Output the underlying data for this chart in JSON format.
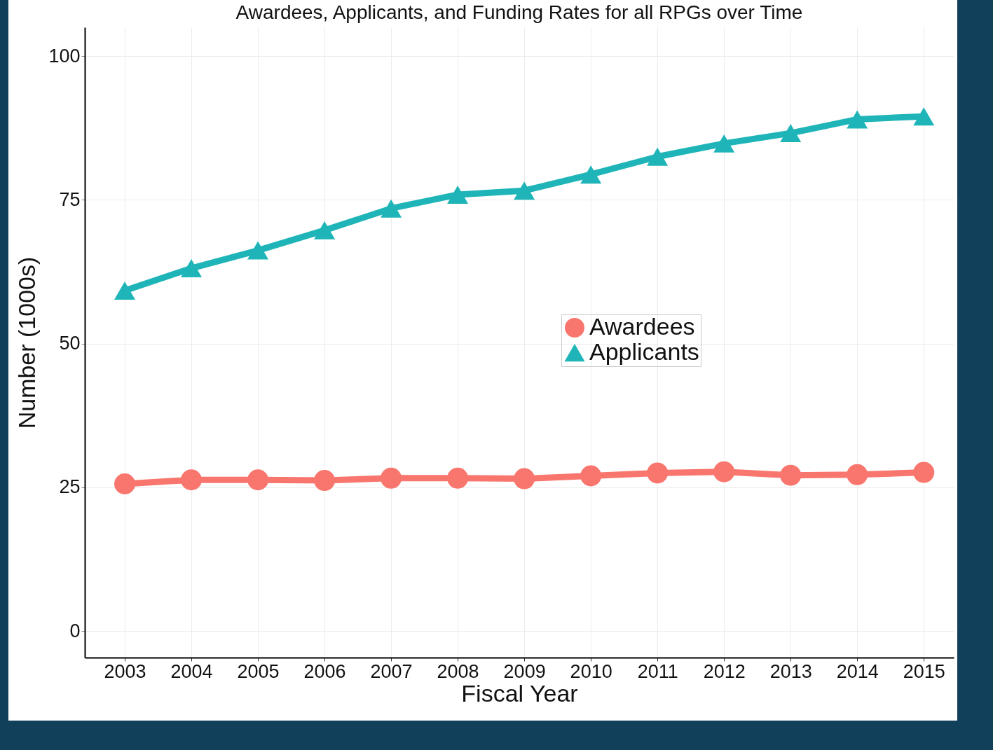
{
  "chart_data": {
    "type": "line",
    "title": "Awardees, Applicants, and Funding Rates for all RPGs over Time",
    "xlabel": "Fiscal Year",
    "ylabel": "Number (1000s)",
    "categories": [
      "2003",
      "2004",
      "2005",
      "2006",
      "2007",
      "2008",
      "2009",
      "2010",
      "2011",
      "2012",
      "2013",
      "2014",
      "2015"
    ],
    "series": [
      {
        "name": "Awardees",
        "color": "#f8766d",
        "marker": "circle",
        "values": [
          25.6,
          26.3,
          26.3,
          26.2,
          26.6,
          26.6,
          26.5,
          27.0,
          27.5,
          27.7,
          27.1,
          27.2,
          27.6
        ]
      },
      {
        "name": "Applicants",
        "color": "#1fb5b8",
        "marker": "triangle",
        "values": [
          59.2,
          63.1,
          66.2,
          69.7,
          73.5,
          75.9,
          76.6,
          79.4,
          82.5,
          84.8,
          86.6,
          89.0,
          89.5
        ]
      }
    ],
    "ylim": [
      -4.6,
      105
    ],
    "yticks": [
      0,
      25,
      50,
      75,
      100
    ],
    "grid": true,
    "legend": "center"
  }
}
